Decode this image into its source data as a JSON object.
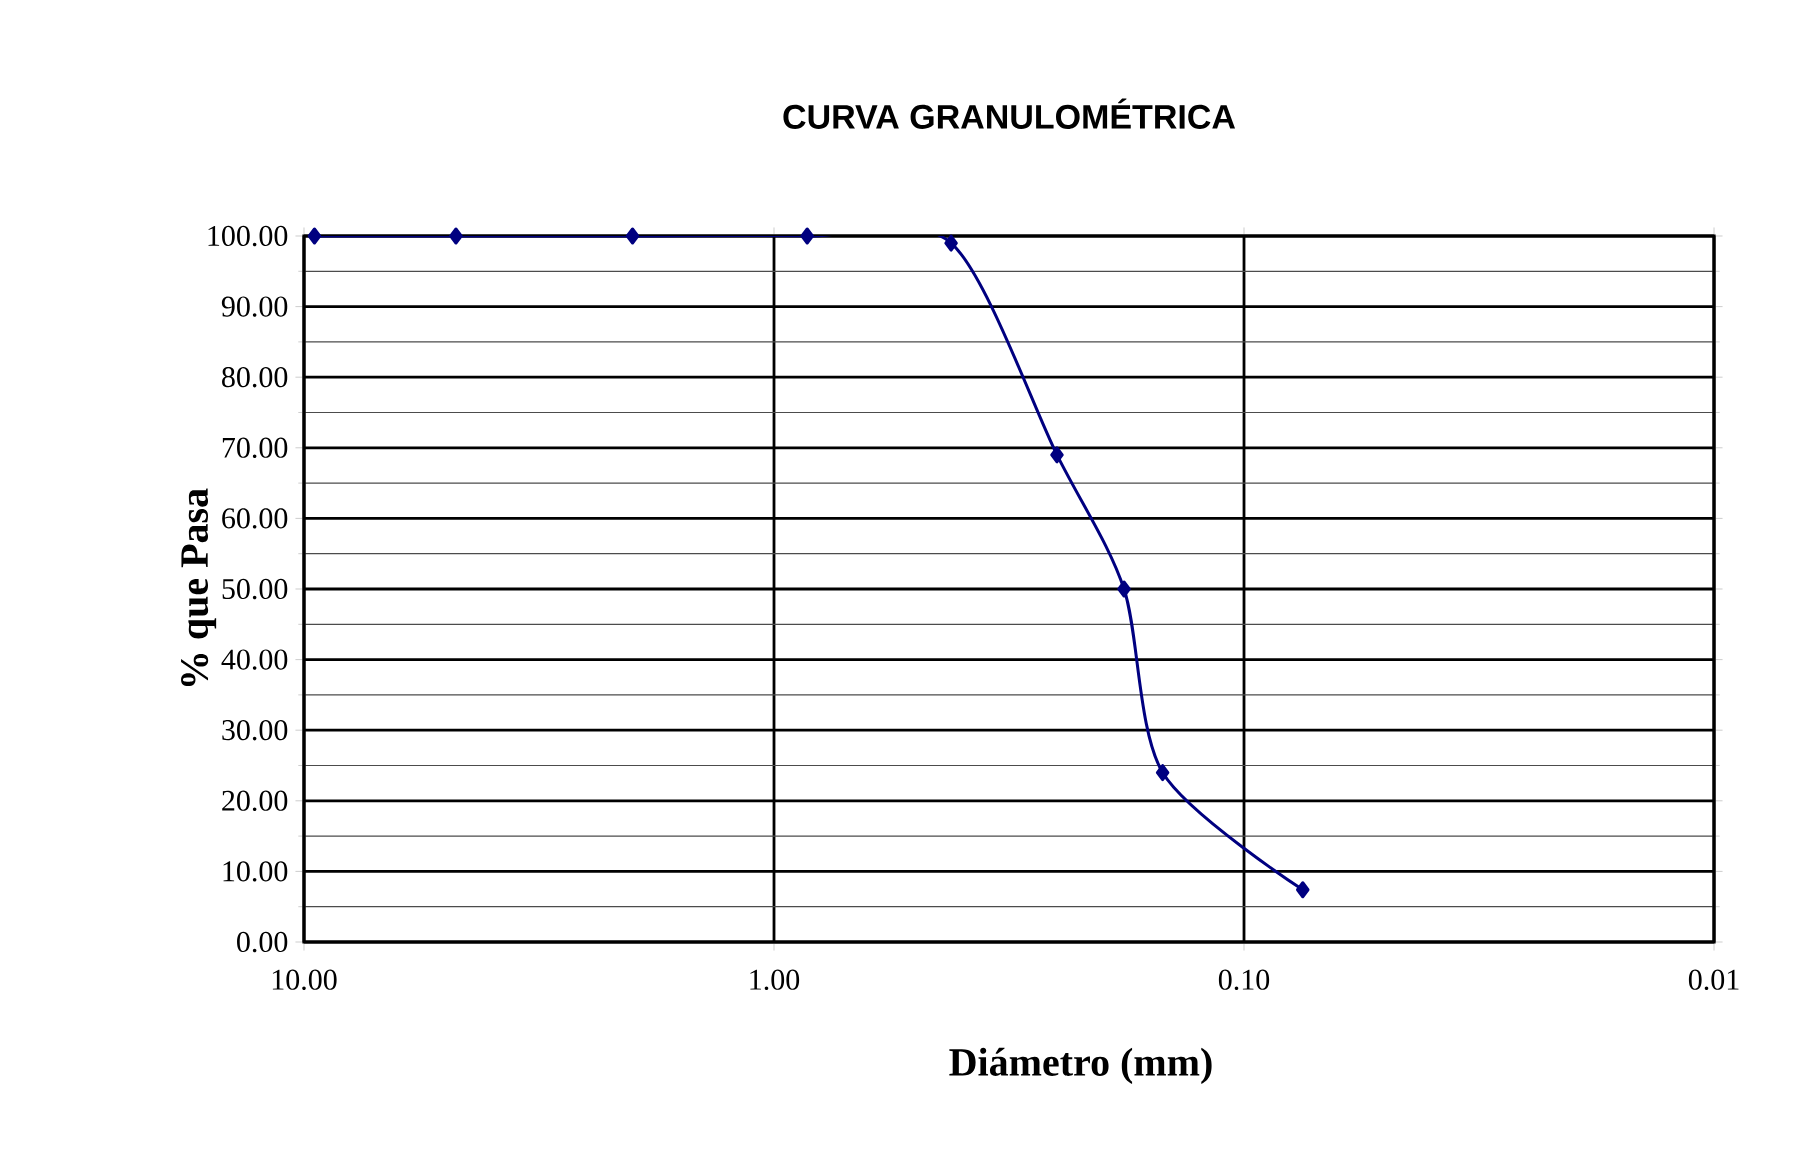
{
  "chart_data": {
    "type": "line",
    "title": "CURVA GRANULOMÉTRICA",
    "xlabel": "Diámetro (mm)",
    "ylabel": "% que Pasa",
    "x": [
      9.5,
      4.75,
      2.0,
      0.85,
      0.42,
      0.25,
      0.18,
      0.149,
      0.075
    ],
    "series": [
      {
        "color": "#000080",
        "values": [
          100,
          100,
          100,
          100,
          99,
          69,
          50,
          24,
          7.4
        ]
      }
    ],
    "log": "x",
    "xlim": [
      10,
      0.01
    ],
    "xticks": [
      {
        "value": 10,
        "label": "10.00"
      },
      {
        "value": 1,
        "label": "1.00"
      },
      {
        "value": 0.1,
        "label": "0.10"
      },
      {
        "value": 0.01,
        "label": "0.01"
      }
    ],
    "ylim": [
      0,
      100
    ],
    "yticks": [
      {
        "value": 0,
        "label": "0.00"
      },
      {
        "value": 10,
        "label": "10.00"
      },
      {
        "value": 20,
        "label": "20.00"
      },
      {
        "value": 30,
        "label": "30.00"
      },
      {
        "value": 40,
        "label": "40.00"
      },
      {
        "value": 50,
        "label": "50.00"
      },
      {
        "value": 60,
        "label": "60.00"
      },
      {
        "value": 70,
        "label": "70.00"
      },
      {
        "value": 80,
        "label": "80.00"
      },
      {
        "value": 90,
        "label": "90.00"
      },
      {
        "value": 100,
        "label": "100.00"
      }
    ],
    "grid": true,
    "marker": "diamond",
    "line_style": "solid"
  }
}
